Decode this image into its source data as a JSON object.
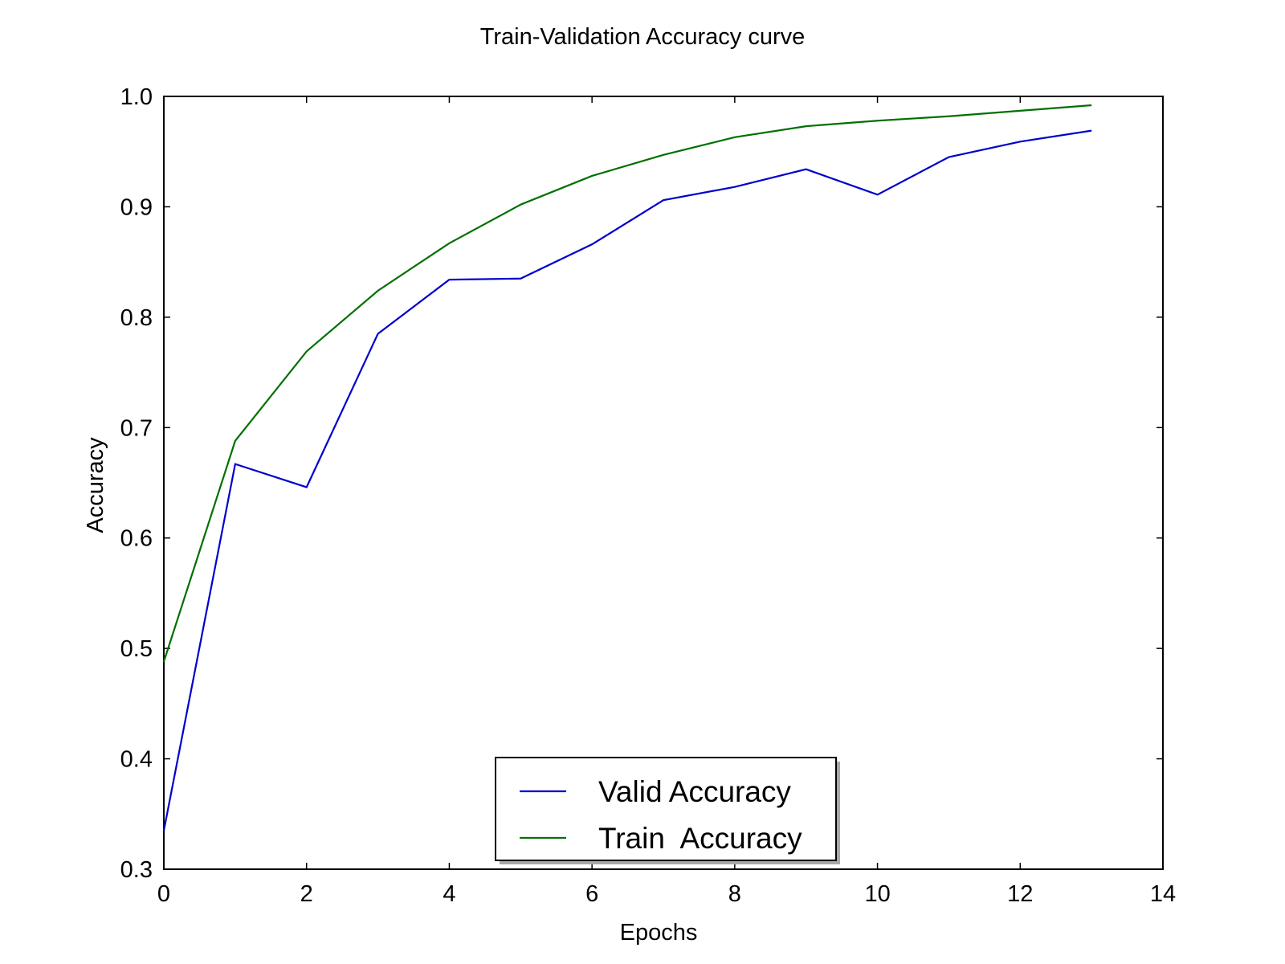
{
  "chart_data": {
    "type": "line",
    "title": "Train-Validation Accuracy curve",
    "xlabel": "Epochs",
    "ylabel": "Accuracy",
    "xlim": [
      0,
      14
    ],
    "ylim": [
      0.3,
      1.0
    ],
    "xticks": [
      "0",
      "2",
      "4",
      "6",
      "8",
      "10",
      "12",
      "14"
    ],
    "yticks": [
      "0.3",
      "0.4",
      "0.5",
      "0.6",
      "0.7",
      "0.8",
      "0.9",
      "1.0"
    ],
    "grid": false,
    "legend_position": "lower-center",
    "x": [
      0,
      1,
      2,
      3,
      4,
      5,
      6,
      7,
      8,
      9,
      10,
      11,
      12,
      13
    ],
    "series": [
      {
        "name": "Valid Accuracy",
        "color": "#0000cc",
        "values": [
          0.335,
          0.667,
          0.646,
          0.785,
          0.834,
          0.835,
          0.866,
          0.906,
          0.918,
          0.934,
          0.911,
          0.945,
          0.959,
          0.969
        ]
      },
      {
        "name": "Train  Accuracy",
        "color": "#007000",
        "values": [
          0.488,
          0.688,
          0.769,
          0.824,
          0.867,
          0.902,
          0.928,
          0.947,
          0.963,
          0.973,
          0.978,
          0.982,
          0.987,
          0.992
        ]
      }
    ]
  }
}
